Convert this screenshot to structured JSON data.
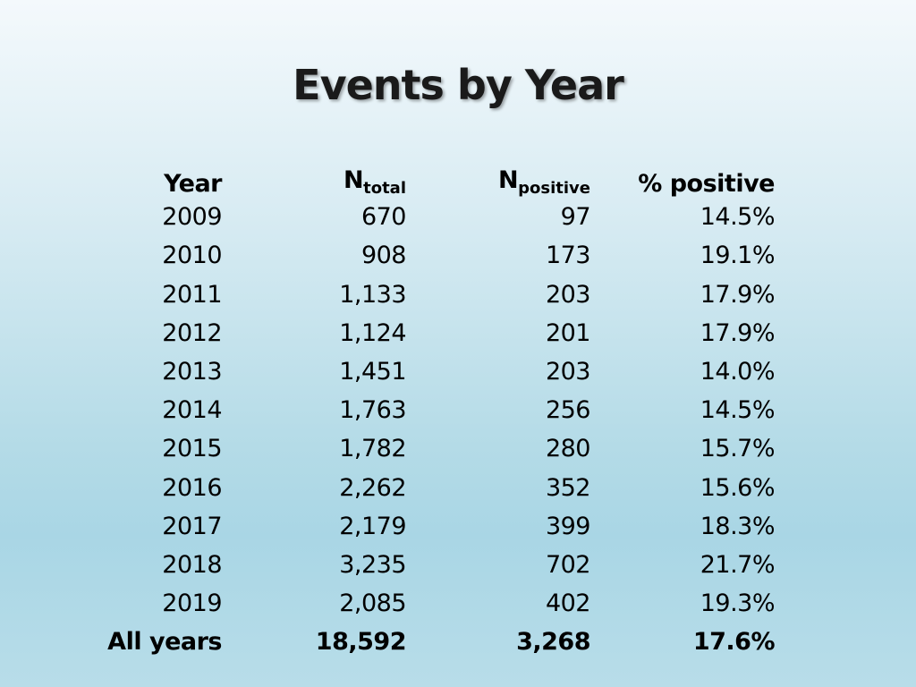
{
  "title": "Events by Year",
  "table": {
    "headers": {
      "year": "Year",
      "n_total_main": "N",
      "n_total_sub": "total",
      "n_positive_main": "N",
      "n_positive_sub": "positive",
      "pct_positive": "% positive"
    },
    "rows": [
      {
        "year": "2009",
        "n_total": "670",
        "n_positive": "97",
        "pct_positive": "14.5%"
      },
      {
        "year": "2010",
        "n_total": "908",
        "n_positive": "173",
        "pct_positive": "19.1%"
      },
      {
        "year": "2011",
        "n_total": "1,133",
        "n_positive": "203",
        "pct_positive": "17.9%"
      },
      {
        "year": "2012",
        "n_total": "1,124",
        "n_positive": "201",
        "pct_positive": "17.9%"
      },
      {
        "year": "2013",
        "n_total": "1,451",
        "n_positive": "203",
        "pct_positive": "14.0%"
      },
      {
        "year": "2014",
        "n_total": "1,763",
        "n_positive": "256",
        "pct_positive": "14.5%"
      },
      {
        "year": "2015",
        "n_total": "1,782",
        "n_positive": "280",
        "pct_positive": "15.7%"
      },
      {
        "year": "2016",
        "n_total": "2,262",
        "n_positive": "352",
        "pct_positive": "15.6%"
      },
      {
        "year": "2017",
        "n_total": "2,179",
        "n_positive": "399",
        "pct_positive": "18.3%"
      },
      {
        "year": "2018",
        "n_total": "3,235",
        "n_positive": "702",
        "pct_positive": "21.7%"
      },
      {
        "year": "2019",
        "n_total": "2,085",
        "n_positive": "402",
        "pct_positive": "19.3%"
      }
    ],
    "total": {
      "year": "All years",
      "n_total": "18,592",
      "n_positive": "3,268",
      "pct_positive": "17.6%"
    }
  }
}
